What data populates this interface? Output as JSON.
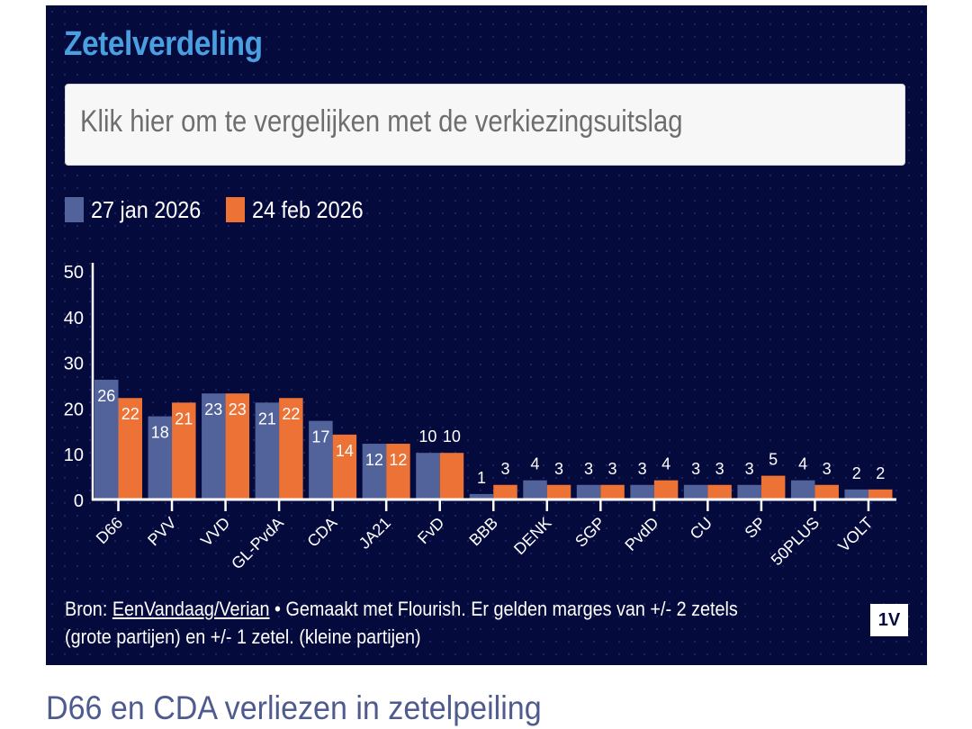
{
  "panel": {
    "title": "Zetelverdeling",
    "compare_button_label": "Klik hier om te vergelijken met de verkiezingsuitslag",
    "footer": {
      "source_prefix": "Bron: ",
      "source_link": "EenVandaag/Verian",
      "text_line1": " • Gemaakt met Flourish. Er gelden marges van +/- 2 zetels",
      "text_line2": "(grote partijen) en +/- 1 zetel. (kleine partijen)"
    },
    "logo_text": "1V"
  },
  "headline": "D66 en CDA verliezen in zetelpeiling",
  "colors": {
    "series_1": "#52629a",
    "series_2": "#ec7236",
    "title": "#4a9fe0",
    "background": "#050a3d"
  },
  "chart_data": {
    "type": "bar",
    "title": "Zetelverdeling",
    "xlabel": "",
    "ylabel": "",
    "ylim": [
      0,
      50
    ],
    "yticks": [
      0,
      10,
      20,
      30,
      40,
      50
    ],
    "grid": false,
    "legend_position": "top-left",
    "categories": [
      "D66",
      "PVV",
      "VVD",
      "GL-PvdA",
      "CDA",
      "JA21",
      "FvD",
      "BBB",
      "DENK",
      "SGP",
      "PvdD",
      "CU",
      "SP",
      "50PLUS",
      "VOLT"
    ],
    "series": [
      {
        "name": "27 jan 2026",
        "values": [
          26,
          18,
          23,
          21,
          17,
          12,
          10,
          1,
          4,
          3,
          3,
          3,
          3,
          4,
          2
        ]
      },
      {
        "name": "24 feb 2026",
        "values": [
          22,
          21,
          23,
          22,
          14,
          12,
          10,
          3,
          3,
          3,
          4,
          3,
          5,
          3,
          2
        ]
      }
    ]
  }
}
